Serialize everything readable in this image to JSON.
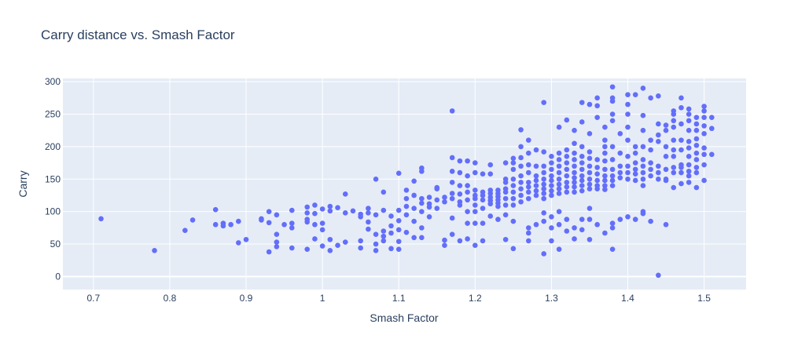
{
  "chart_data": {
    "type": "scatter",
    "title": "Carry distance vs. Smash Factor",
    "xlabel": "Smash Factor",
    "ylabel": "Carry",
    "xlim": [
      0.66,
      1.555
    ],
    "ylim": [
      -20,
      305
    ],
    "x_ticks": [
      0.7,
      0.8,
      0.9,
      1,
      1.1,
      1.2,
      1.3,
      1.4,
      1.5
    ],
    "x_tick_labels": [
      "0.7",
      "0.8",
      "0.9",
      "1",
      "1.1",
      "1.2",
      "1.3",
      "1.4",
      "1.5"
    ],
    "y_ticks": [
      0,
      50,
      100,
      150,
      200,
      250,
      300
    ],
    "y_tick_labels": [
      "0",
      "50",
      "100",
      "150",
      "200",
      "250",
      "300"
    ],
    "grid": true,
    "marker_color": "#636efa",
    "background_color": "#e5ecf6",
    "points": [
      [
        0.71,
        89
      ],
      [
        0.78,
        40
      ],
      [
        0.82,
        71
      ],
      [
        0.83,
        87
      ],
      [
        0.86,
        103
      ],
      [
        0.86,
        80
      ],
      [
        0.87,
        82
      ],
      [
        0.87,
        78
      ],
      [
        0.88,
        80
      ],
      [
        0.89,
        85
      ],
      [
        0.89,
        52
      ],
      [
        0.9,
        57
      ],
      [
        0.92,
        89
      ],
      [
        0.92,
        87
      ],
      [
        0.93,
        100
      ],
      [
        0.93,
        83
      ],
      [
        0.93,
        38
      ],
      [
        0.94,
        95
      ],
      [
        0.94,
        65
      ],
      [
        0.94,
        53
      ],
      [
        0.94,
        46
      ],
      [
        0.95,
        80
      ],
      [
        0.96,
        102
      ],
      [
        0.96,
        82
      ],
      [
        0.96,
        75
      ],
      [
        0.96,
        44
      ],
      [
        0.98,
        107
      ],
      [
        0.98,
        98
      ],
      [
        0.98,
        88
      ],
      [
        0.98,
        84
      ],
      [
        0.98,
        42
      ],
      [
        0.99,
        110
      ],
      [
        0.99,
        97
      ],
      [
        0.99,
        80
      ],
      [
        0.99,
        58
      ],
      [
        1.0,
        104
      ],
      [
        1.0,
        82
      ],
      [
        1.0,
        72
      ],
      [
        1.0,
        47
      ],
      [
        1.01,
        108
      ],
      [
        1.01,
        101
      ],
      [
        1.01,
        57
      ],
      [
        1.01,
        40
      ],
      [
        1.02,
        106
      ],
      [
        1.02,
        48
      ],
      [
        1.03,
        127
      ],
      [
        1.03,
        98
      ],
      [
        1.03,
        53
      ],
      [
        1.04,
        101
      ],
      [
        1.05,
        96
      ],
      [
        1.05,
        92
      ],
      [
        1.05,
        55
      ],
      [
        1.05,
        44
      ],
      [
        1.06,
        105
      ],
      [
        1.06,
        98
      ],
      [
        1.06,
        84
      ],
      [
        1.06,
        73
      ],
      [
        1.07,
        150
      ],
      [
        1.07,
        95
      ],
      [
        1.07,
        65
      ],
      [
        1.07,
        50
      ],
      [
        1.07,
        40
      ],
      [
        1.08,
        130
      ],
      [
        1.08,
        102
      ],
      [
        1.08,
        70
      ],
      [
        1.08,
        62
      ],
      [
        1.08,
        55
      ],
      [
        1.09,
        93
      ],
      [
        1.09,
        78
      ],
      [
        1.09,
        67
      ],
      [
        1.09,
        43
      ],
      [
        1.1,
        159
      ],
      [
        1.1,
        102
      ],
      [
        1.1,
        86
      ],
      [
        1.1,
        72
      ],
      [
        1.1,
        54
      ],
      [
        1.1,
        42
      ],
      [
        1.11,
        133
      ],
      [
        1.11,
        120
      ],
      [
        1.11,
        108
      ],
      [
        1.11,
        95
      ],
      [
        1.11,
        68
      ],
      [
        1.12,
        147
      ],
      [
        1.12,
        125
      ],
      [
        1.12,
        105
      ],
      [
        1.12,
        85
      ],
      [
        1.12,
        60
      ],
      [
        1.13,
        167
      ],
      [
        1.13,
        162
      ],
      [
        1.13,
        120
      ],
      [
        1.13,
        113
      ],
      [
        1.13,
        100
      ],
      [
        1.13,
        75
      ],
      [
        1.13,
        60
      ],
      [
        1.14,
        122
      ],
      [
        1.14,
        112
      ],
      [
        1.14,
        107
      ],
      [
        1.14,
        92
      ],
      [
        1.15,
        137
      ],
      [
        1.15,
        135
      ],
      [
        1.15,
        118
      ],
      [
        1.15,
        105
      ],
      [
        1.16,
        122
      ],
      [
        1.16,
        115
      ],
      [
        1.16,
        56
      ],
      [
        1.16,
        48
      ],
      [
        1.17,
        255
      ],
      [
        1.17,
        183
      ],
      [
        1.17,
        162
      ],
      [
        1.17,
        145
      ],
      [
        1.17,
        128
      ],
      [
        1.17,
        120
      ],
      [
        1.17,
        90
      ],
      [
        1.17,
        65
      ],
      [
        1.18,
        178
      ],
      [
        1.18,
        160
      ],
      [
        1.18,
        140
      ],
      [
        1.18,
        127
      ],
      [
        1.18,
        115
      ],
      [
        1.18,
        110
      ],
      [
        1.18,
        55
      ],
      [
        1.19,
        178
      ],
      [
        1.19,
        155
      ],
      [
        1.19,
        140
      ],
      [
        1.19,
        130
      ],
      [
        1.19,
        118
      ],
      [
        1.19,
        100
      ],
      [
        1.19,
        82
      ],
      [
        1.19,
        58
      ],
      [
        1.2,
        175
      ],
      [
        1.2,
        160
      ],
      [
        1.2,
        133
      ],
      [
        1.2,
        125
      ],
      [
        1.2,
        120
      ],
      [
        1.2,
        110
      ],
      [
        1.2,
        100
      ],
      [
        1.2,
        82
      ],
      [
        1.2,
        48
      ],
      [
        1.21,
        158
      ],
      [
        1.21,
        130
      ],
      [
        1.21,
        125
      ],
      [
        1.21,
        118
      ],
      [
        1.21,
        105
      ],
      [
        1.21,
        82
      ],
      [
        1.21,
        55
      ],
      [
        1.22,
        172
      ],
      [
        1.22,
        158
      ],
      [
        1.22,
        133
      ],
      [
        1.22,
        128
      ],
      [
        1.22,
        122
      ],
      [
        1.22,
        117
      ],
      [
        1.22,
        112
      ],
      [
        1.22,
        93
      ],
      [
        1.23,
        133
      ],
      [
        1.23,
        128
      ],
      [
        1.23,
        123
      ],
      [
        1.23,
        118
      ],
      [
        1.23,
        113
      ],
      [
        1.23,
        108
      ],
      [
        1.23,
        88
      ],
      [
        1.24,
        175
      ],
      [
        1.24,
        150
      ],
      [
        1.24,
        145
      ],
      [
        1.24,
        135
      ],
      [
        1.24,
        130
      ],
      [
        1.24,
        120
      ],
      [
        1.24,
        110
      ],
      [
        1.24,
        95
      ],
      [
        1.24,
        57
      ],
      [
        1.25,
        182
      ],
      [
        1.25,
        175
      ],
      [
        1.25,
        165
      ],
      [
        1.25,
        150
      ],
      [
        1.25,
        140
      ],
      [
        1.25,
        130
      ],
      [
        1.25,
        120
      ],
      [
        1.25,
        110
      ],
      [
        1.25,
        85
      ],
      [
        1.25,
        43
      ],
      [
        1.26,
        226
      ],
      [
        1.26,
        200
      ],
      [
        1.26,
        183
      ],
      [
        1.26,
        170
      ],
      [
        1.26,
        155
      ],
      [
        1.26,
        145
      ],
      [
        1.26,
        135
      ],
      [
        1.26,
        125
      ],
      [
        1.26,
        115
      ],
      [
        1.27,
        210
      ],
      [
        1.27,
        190
      ],
      [
        1.27,
        172
      ],
      [
        1.27,
        160
      ],
      [
        1.27,
        145
      ],
      [
        1.27,
        138
      ],
      [
        1.27,
        130
      ],
      [
        1.27,
        120
      ],
      [
        1.27,
        75
      ],
      [
        1.27,
        67
      ],
      [
        1.27,
        55
      ],
      [
        1.28,
        195
      ],
      [
        1.28,
        170
      ],
      [
        1.28,
        155
      ],
      [
        1.28,
        148
      ],
      [
        1.28,
        140
      ],
      [
        1.28,
        132
      ],
      [
        1.28,
        125
      ],
      [
        1.28,
        80
      ],
      [
        1.29,
        268
      ],
      [
        1.29,
        192
      ],
      [
        1.29,
        170
      ],
      [
        1.29,
        160
      ],
      [
        1.29,
        150
      ],
      [
        1.29,
        142
      ],
      [
        1.29,
        135
      ],
      [
        1.29,
        128
      ],
      [
        1.29,
        120
      ],
      [
        1.29,
        98
      ],
      [
        1.29,
        85
      ],
      [
        1.29,
        35
      ],
      [
        1.3,
        185
      ],
      [
        1.3,
        175
      ],
      [
        1.3,
        165
      ],
      [
        1.3,
        155
      ],
      [
        1.3,
        148
      ],
      [
        1.3,
        140
      ],
      [
        1.3,
        132
      ],
      [
        1.3,
        125
      ],
      [
        1.3,
        92
      ],
      [
        1.3,
        75
      ],
      [
        1.3,
        55
      ],
      [
        1.31,
        230
      ],
      [
        1.31,
        190
      ],
      [
        1.31,
        180
      ],
      [
        1.31,
        170
      ],
      [
        1.31,
        160
      ],
      [
        1.31,
        150
      ],
      [
        1.31,
        142
      ],
      [
        1.31,
        135
      ],
      [
        1.31,
        128
      ],
      [
        1.31,
        100
      ],
      [
        1.31,
        80
      ],
      [
        1.31,
        42
      ],
      [
        1.32,
        241
      ],
      [
        1.32,
        195
      ],
      [
        1.32,
        185
      ],
      [
        1.32,
        175
      ],
      [
        1.32,
        165
      ],
      [
        1.32,
        155
      ],
      [
        1.32,
        145
      ],
      [
        1.32,
        138
      ],
      [
        1.32,
        130
      ],
      [
        1.32,
        88
      ],
      [
        1.32,
        70
      ],
      [
        1.33,
        225
      ],
      [
        1.33,
        205
      ],
      [
        1.33,
        190
      ],
      [
        1.33,
        180
      ],
      [
        1.33,
        170
      ],
      [
        1.33,
        160
      ],
      [
        1.33,
        152
      ],
      [
        1.33,
        145
      ],
      [
        1.33,
        138
      ],
      [
        1.33,
        130
      ],
      [
        1.33,
        75
      ],
      [
        1.33,
        58
      ],
      [
        1.34,
        268
      ],
      [
        1.34,
        238
      ],
      [
        1.34,
        200
      ],
      [
        1.34,
        185
      ],
      [
        1.34,
        175
      ],
      [
        1.34,
        165
      ],
      [
        1.34,
        155
      ],
      [
        1.34,
        148
      ],
      [
        1.34,
        140
      ],
      [
        1.34,
        132
      ],
      [
        1.34,
        88
      ],
      [
        1.34,
        72
      ],
      [
        1.35,
        265
      ],
      [
        1.35,
        220
      ],
      [
        1.35,
        192
      ],
      [
        1.35,
        182
      ],
      [
        1.35,
        170
      ],
      [
        1.35,
        160
      ],
      [
        1.35,
        150
      ],
      [
        1.35,
        142
      ],
      [
        1.35,
        135
      ],
      [
        1.35,
        105
      ],
      [
        1.35,
        88
      ],
      [
        1.35,
        57
      ],
      [
        1.36,
        275
      ],
      [
        1.36,
        263
      ],
      [
        1.36,
        245
      ],
      [
        1.36,
        180
      ],
      [
        1.36,
        168
      ],
      [
        1.36,
        158
      ],
      [
        1.36,
        148
      ],
      [
        1.36,
        140
      ],
      [
        1.36,
        135
      ],
      [
        1.36,
        80
      ],
      [
        1.37,
        230
      ],
      [
        1.37,
        210
      ],
      [
        1.37,
        200
      ],
      [
        1.37,
        190
      ],
      [
        1.37,
        178
      ],
      [
        1.37,
        165
      ],
      [
        1.37,
        155
      ],
      [
        1.37,
        148
      ],
      [
        1.37,
        140
      ],
      [
        1.37,
        134
      ],
      [
        1.37,
        67
      ],
      [
        1.38,
        292
      ],
      [
        1.38,
        275
      ],
      [
        1.38,
        270
      ],
      [
        1.38,
        250
      ],
      [
        1.38,
        240
      ],
      [
        1.38,
        200
      ],
      [
        1.38,
        180
      ],
      [
        1.38,
        165
      ],
      [
        1.38,
        155
      ],
      [
        1.38,
        148
      ],
      [
        1.38,
        140
      ],
      [
        1.38,
        82
      ],
      [
        1.38,
        75
      ],
      [
        1.38,
        42
      ],
      [
        1.39,
        220
      ],
      [
        1.39,
        190
      ],
      [
        1.39,
        170
      ],
      [
        1.39,
        160
      ],
      [
        1.39,
        152
      ],
      [
        1.39,
        88
      ],
      [
        1.4,
        280
      ],
      [
        1.4,
        265
      ],
      [
        1.4,
        250
      ],
      [
        1.4,
        230
      ],
      [
        1.4,
        210
      ],
      [
        1.4,
        185
      ],
      [
        1.4,
        170
      ],
      [
        1.4,
        160
      ],
      [
        1.4,
        150
      ],
      [
        1.4,
        92
      ],
      [
        1.41,
        280
      ],
      [
        1.41,
        200
      ],
      [
        1.41,
        190
      ],
      [
        1.41,
        175
      ],
      [
        1.41,
        165
      ],
      [
        1.41,
        158
      ],
      [
        1.41,
        148
      ],
      [
        1.41,
        88
      ],
      [
        1.42,
        290
      ],
      [
        1.42,
        248
      ],
      [
        1.42,
        225
      ],
      [
        1.42,
        200
      ],
      [
        1.42,
        180
      ],
      [
        1.42,
        170
      ],
      [
        1.42,
        160
      ],
      [
        1.42,
        150
      ],
      [
        1.42,
        140
      ],
      [
        1.42,
        100
      ],
      [
        1.42,
        97
      ],
      [
        1.43,
        275
      ],
      [
        1.43,
        210
      ],
      [
        1.43,
        195
      ],
      [
        1.43,
        175
      ],
      [
        1.43,
        165
      ],
      [
        1.43,
        155
      ],
      [
        1.43,
        85
      ],
      [
        1.44,
        278
      ],
      [
        1.44,
        235
      ],
      [
        1.44,
        218
      ],
      [
        1.44,
        208
      ],
      [
        1.44,
        170
      ],
      [
        1.44,
        160
      ],
      [
        1.44,
        150
      ],
      [
        1.44,
        2
      ],
      [
        1.45,
        233
      ],
      [
        1.45,
        225
      ],
      [
        1.45,
        200
      ],
      [
        1.45,
        185
      ],
      [
        1.45,
        165
      ],
      [
        1.45,
        150
      ],
      [
        1.45,
        148
      ],
      [
        1.45,
        80
      ],
      [
        1.46,
        255
      ],
      [
        1.46,
        250
      ],
      [
        1.46,
        240
      ],
      [
        1.46,
        230
      ],
      [
        1.46,
        210
      ],
      [
        1.46,
        195
      ],
      [
        1.46,
        185
      ],
      [
        1.46,
        168
      ],
      [
        1.46,
        160
      ],
      [
        1.46,
        137
      ],
      [
        1.47,
        275
      ],
      [
        1.47,
        260
      ],
      [
        1.47,
        235
      ],
      [
        1.47,
        210
      ],
      [
        1.47,
        195
      ],
      [
        1.47,
        172
      ],
      [
        1.47,
        168
      ],
      [
        1.47,
        160
      ],
      [
        1.47,
        143
      ],
      [
        1.48,
        258
      ],
      [
        1.48,
        250
      ],
      [
        1.48,
        240
      ],
      [
        1.48,
        225
      ],
      [
        1.48,
        208
      ],
      [
        1.48,
        198
      ],
      [
        1.48,
        185
      ],
      [
        1.48,
        172
      ],
      [
        1.48,
        162
      ],
      [
        1.48,
        155
      ],
      [
        1.48,
        145
      ],
      [
        1.49,
        245
      ],
      [
        1.49,
        235
      ],
      [
        1.49,
        225
      ],
      [
        1.49,
        212
      ],
      [
        1.49,
        202
      ],
      [
        1.49,
        190
      ],
      [
        1.49,
        180
      ],
      [
        1.49,
        168
      ],
      [
        1.49,
        160
      ],
      [
        1.49,
        137
      ],
      [
        1.5,
        262
      ],
      [
        1.5,
        255
      ],
      [
        1.5,
        245
      ],
      [
        1.5,
        232
      ],
      [
        1.5,
        220
      ],
      [
        1.5,
        198
      ],
      [
        1.5,
        188
      ],
      [
        1.5,
        172
      ],
      [
        1.5,
        148
      ],
      [
        1.51,
        245
      ],
      [
        1.51,
        228
      ],
      [
        1.51,
        188
      ]
    ]
  }
}
